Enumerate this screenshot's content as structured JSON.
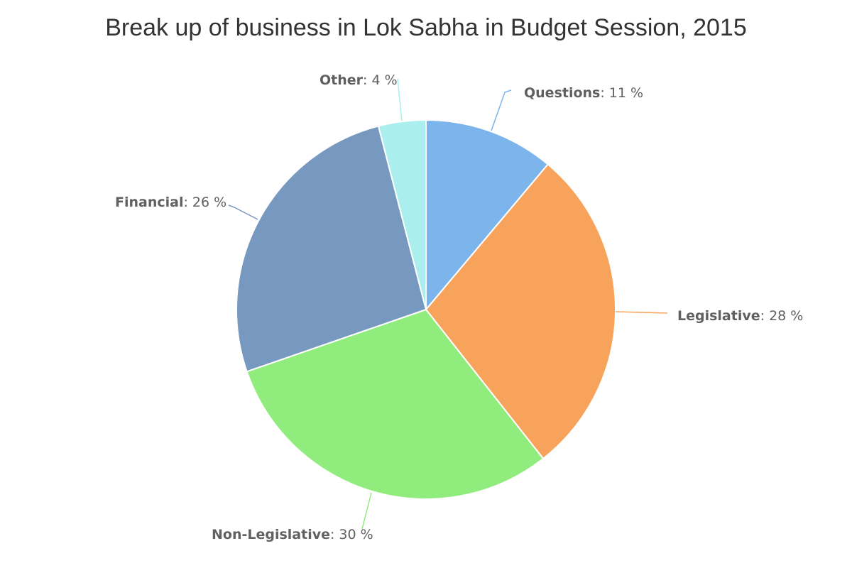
{
  "chart_data": {
    "type": "pie",
    "title": "Break up of business in Lok Sabha in Budget Session, 2015",
    "unit_suffix": " %",
    "legend": "none",
    "slices": [
      {
        "name": "Questions",
        "value": 11,
        "color": "#7cb5ec"
      },
      {
        "name": "Legislative",
        "value": 28,
        "color": "#f7a35c"
      },
      {
        "name": "Non-Legislative",
        "value": 30,
        "color": "#90ed7d"
      },
      {
        "name": "Financial",
        "value": 26,
        "color": "#7798bf"
      },
      {
        "name": "Other",
        "value": 4,
        "color": "#aaeeee"
      }
    ]
  }
}
